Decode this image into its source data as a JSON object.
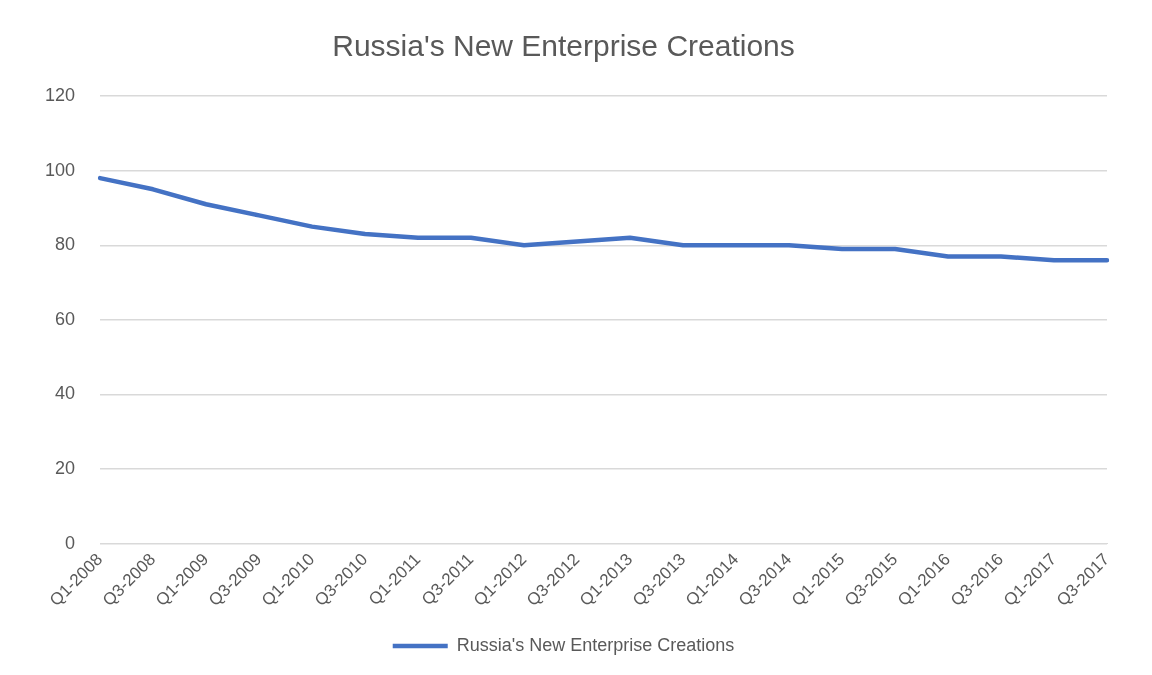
{
  "chart_data": {
    "type": "line",
    "title": "Russia's New Enterprise Creations",
    "categories": [
      "Q1-2008",
      "Q3-2008",
      "Q1-2009",
      "Q3-2009",
      "Q1-2010",
      "Q3-2010",
      "Q1-2011",
      "Q3-2011",
      "Q1-2012",
      "Q3-2012",
      "Q1-2013",
      "Q3-2013",
      "Q1-2014",
      "Q3-2014",
      "Q1-2015",
      "Q3-2015",
      "Q1-2016",
      "Q3-2016",
      "Q1-2017",
      "Q3-2017"
    ],
    "series": [
      {
        "name": "Russia's New Enterprise Creations",
        "color": "#4472c4",
        "values": [
          98,
          95,
          91,
          88,
          85,
          83,
          82,
          82,
          80,
          81,
          82,
          80,
          80,
          80,
          79,
          79,
          77,
          77,
          76,
          76
        ]
      }
    ],
    "ylim": [
      0,
      120
    ],
    "yticks": [
      0,
      20,
      40,
      60,
      80,
      100,
      120
    ],
    "grid": "y",
    "legend": "bottom",
    "marker": "none"
  }
}
